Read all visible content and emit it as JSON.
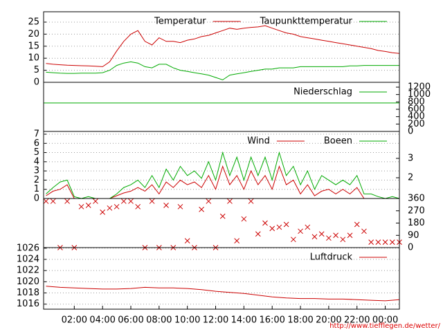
{
  "chart_data": [
    {
      "type": "line",
      "xlim": [
        -0.17,
        25.0
      ],
      "ylim": [
        0,
        29.3
      ],
      "yticks": [
        0,
        5,
        10,
        15,
        20,
        25
      ],
      "grid": true,
      "legend": "top-right",
      "x": [
        0,
        0.5,
        1,
        1.5,
        2,
        2.5,
        3,
        3.5,
        4,
        4.5,
        5,
        5.5,
        6,
        6.5,
        7,
        7.5,
        8,
        8.5,
        9,
        9.5,
        10,
        10.5,
        11,
        11.5,
        12,
        12.5,
        13,
        13.5,
        14,
        14.5,
        15,
        15.5,
        16,
        16.5,
        17,
        17.5,
        18,
        18.5,
        19,
        19.5,
        20,
        20.5,
        21,
        21.5,
        22,
        22.5,
        23,
        23.5,
        24,
        24.5,
        25
      ],
      "series": [
        {
          "name": "Temperatur",
          "color": "#cc0000",
          "values": [
            7.8,
            7.5,
            7.3,
            7.1,
            7.0,
            6.9,
            6.8,
            6.7,
            6.5,
            8.5,
            13,
            17,
            20,
            21.5,
            17,
            15.5,
            18.5,
            17,
            17,
            16.5,
            17.5,
            18,
            19,
            19.5,
            20.5,
            21.5,
            22.5,
            22,
            22.5,
            22.8,
            23,
            23.5,
            22.5,
            21.5,
            20.5,
            20,
            19,
            18.5,
            18,
            17.5,
            17,
            16.5,
            16,
            15.5,
            15,
            14.5,
            14,
            13.2,
            12.8,
            12.3,
            12
          ]
        },
        {
          "name": "Taupunkttemperatur",
          "color": "#00aa00",
          "values": [
            4.2,
            4.0,
            3.8,
            3.7,
            3.7,
            3.8,
            3.8,
            3.8,
            4.0,
            5,
            7,
            8,
            8.5,
            8,
            6.5,
            6,
            7.5,
            7.5,
            6,
            5,
            4.5,
            4,
            3.5,
            3,
            2,
            1,
            3,
            3.5,
            4,
            4.5,
            5,
            5.5,
            5.5,
            6,
            6,
            6,
            6.5,
            6.5,
            6.5,
            6.5,
            6.5,
            6.5,
            6.5,
            6.8,
            6.8,
            7,
            7,
            7,
            7,
            7,
            7
          ]
        }
      ]
    },
    {
      "type": "line",
      "xlim": [
        -0.17,
        25.0
      ],
      "y2lim": [
        0,
        1331
      ],
      "y2ticks": [
        0,
        200,
        400,
        600,
        800,
        1000,
        1200
      ],
      "grid": false,
      "legend": "top-right",
      "x": [
        -0.17,
        25.0
      ],
      "series": [
        {
          "name": "Niederschlag",
          "color": "#00aa00",
          "axis": "y2",
          "values": [
            770,
            770
          ]
        }
      ]
    },
    {
      "type": "line",
      "xlim": [
        -0.17,
        25.0
      ],
      "ylim": [
        0,
        7.3
      ],
      "yticks": [
        0,
        1,
        2,
        3,
        4,
        5,
        6,
        7
      ],
      "y2lim": [
        0.93,
        4.39
      ],
      "y2ticks": [
        2,
        3
      ],
      "grid": true,
      "legend": "top-right",
      "x": [
        0,
        0.5,
        1,
        1.5,
        2,
        2.5,
        3,
        3.5,
        4,
        4.5,
        5,
        5.5,
        6,
        6.5,
        7,
        7.5,
        8,
        8.5,
        9,
        9.5,
        10,
        10.5,
        11,
        11.5,
        12,
        12.5,
        13,
        13.5,
        14,
        14.5,
        15,
        15.5,
        16,
        16.5,
        17,
        17.5,
        18,
        18.5,
        19,
        19.5,
        20,
        20.5,
        21,
        21.5,
        22,
        22.5,
        23,
        23.5,
        24,
        24.5,
        25
      ],
      "series": [
        {
          "name": "Wind",
          "color": "#cc0000",
          "values": [
            0.3,
            0.8,
            1.0,
            1.5,
            0,
            0,
            0,
            0,
            0,
            0,
            0.3,
            0.6,
            0.8,
            1.2,
            0.8,
            1.5,
            0.5,
            1.8,
            1.2,
            2.0,
            1.5,
            1.8,
            1.2,
            2.5,
            1.0,
            3.5,
            1.5,
            2.5,
            1.0,
            3.0,
            1.5,
            2.5,
            1.0,
            3.5,
            1.5,
            2.0,
            0.5,
            1.5,
            0.3,
            0.8,
            1.0,
            0.5,
            1.0,
            0.5,
            1.2,
            0,
            0,
            0,
            0,
            0,
            0
          ]
        },
        {
          "name": "Boeen",
          "color": "#00aa00",
          "values": [
            0.5,
            1.2,
            1.8,
            2.0,
            0.2,
            0,
            0.2,
            0,
            0,
            0,
            0.5,
            1.2,
            1.5,
            2.0,
            1.2,
            2.5,
            1.2,
            3.2,
            2.0,
            3.5,
            2.5,
            3.0,
            2.2,
            4.0,
            2.0,
            5.0,
            2.5,
            4.5,
            2.0,
            4.5,
            2.5,
            4.5,
            2.0,
            5.0,
            2.5,
            3.5,
            1.5,
            3.0,
            1.0,
            2.5,
            2.0,
            1.5,
            2.0,
            1.5,
            2.5,
            0.5,
            0.5,
            0.2,
            0,
            0.2,
            0
          ]
        }
      ]
    },
    {
      "type": "scatter",
      "xlim": [
        -0.17,
        25.0
      ],
      "y2lim": [
        0,
        360
      ],
      "y2ticks": [
        0,
        90,
        180,
        270,
        360
      ],
      "grid": false,
      "x": [
        0,
        0.5,
        1,
        1.5,
        2,
        2.5,
        3,
        3.5,
        4,
        4.5,
        5,
        5.5,
        6,
        6.5,
        7,
        7.5,
        8,
        8.5,
        9,
        9.5,
        10,
        10.5,
        11,
        11.5,
        12,
        12.5,
        13,
        13.5,
        14,
        14.5,
        15,
        15.5,
        16,
        16.5,
        17,
        17.5,
        18,
        18.5,
        19,
        19.5,
        20,
        20.5,
        21,
        21.5,
        22,
        22.5,
        23,
        23.5,
        24,
        24.5,
        25
      ],
      "series": [
        {
          "color": "#cc0000",
          "axis": "y2",
          "values": [
            340,
            340,
            0,
            340,
            0,
            300,
            310,
            340,
            260,
            290,
            300,
            340,
            340,
            300,
            0,
            340,
            0,
            310,
            0,
            300,
            50,
            0,
            280,
            340,
            0,
            230,
            340,
            50,
            210,
            340,
            100,
            180,
            140,
            150,
            170,
            60,
            120,
            150,
            80,
            100,
            70,
            90,
            60,
            90,
            170,
            120,
            40,
            40,
            40,
            40,
            40
          ]
        }
      ]
    },
    {
      "type": "line",
      "xlim": [
        -0.17,
        25.0
      ],
      "ylim": [
        1015.1,
        1026.1
      ],
      "yticks": [
        1016,
        1018,
        1020,
        1022,
        1024,
        1026
      ],
      "grid": true,
      "legend": "top-right",
      "xticks": [
        {
          "value": 2,
          "label": "02:00"
        },
        {
          "value": 4,
          "label": "04:00"
        },
        {
          "value": 6,
          "label": "06:00"
        },
        {
          "value": 8,
          "label": "08:00"
        },
        {
          "value": 10,
          "label": "10:00"
        },
        {
          "value": 12,
          "label": "12:00"
        },
        {
          "value": 14,
          "label": "14:00"
        },
        {
          "value": 16,
          "label": "16:00"
        },
        {
          "value": 18,
          "label": "18:00"
        },
        {
          "value": 20,
          "label": "20:00"
        },
        {
          "value": 22,
          "label": "22:00"
        },
        {
          "value": 24,
          "label": "00:00"
        }
      ],
      "x": [
        0,
        1,
        2,
        3,
        4,
        5,
        6,
        7,
        8,
        9,
        10,
        11,
        12,
        13,
        14,
        15,
        16,
        17,
        18,
        19,
        20,
        21,
        22,
        23,
        24,
        25
      ],
      "series": [
        {
          "name": "Luftdruck",
          "color": "#cc0000",
          "values": [
            1019.2,
            1019.0,
            1018.9,
            1018.8,
            1018.7,
            1018.7,
            1018.8,
            1019.0,
            1018.9,
            1018.9,
            1018.8,
            1018.6,
            1018.3,
            1018.1,
            1017.9,
            1017.6,
            1017.3,
            1017.1,
            1017.0,
            1017.0,
            1016.9,
            1016.9,
            1016.8,
            1016.7,
            1016.6,
            1016.8
          ]
        }
      ]
    }
  ],
  "footer": "http://www.tiefflegen.de/wetter/"
}
